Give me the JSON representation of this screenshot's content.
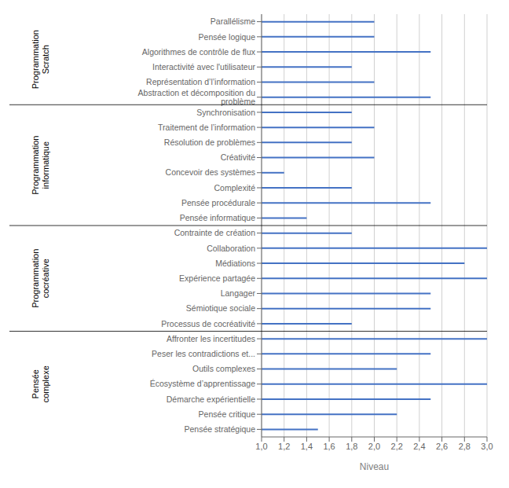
{
  "chart_data": {
    "type": "bar",
    "orientation": "horizontal",
    "categories": [
      "Parallélisme",
      "Pensée logique",
      "Algorithmes de contrôle de flux",
      "Interactivité avec l'utilisateur",
      "Représentation d’l’information",
      "Abstraction et décomposition du problème",
      "Synchronisation",
      "Traitement de l’information",
      "Résolution de problèmes",
      "Créativité",
      "Concevoir des systèmes",
      "Complexité",
      "Pensée procédurale",
      "Pensée informatique",
      "Contrainte de création",
      "Collaboration",
      "Médiations",
      "Expérience partagée",
      "Langager",
      "Sémiotique sociale",
      "Processus de cocréativité",
      "Affronter les incertitudes",
      "Peser les contradictions et...",
      "Outils complexes",
      "Écosystème d’apprentissage",
      "Démarche expérientielle",
      "Pensée critique",
      "Pensée stratégique"
    ],
    "values": [
      2.0,
      2.0,
      2.5,
      1.8,
      2.0,
      2.5,
      1.8,
      2.0,
      1.8,
      2.0,
      1.2,
      1.8,
      2.5,
      1.4,
      1.8,
      3.0,
      2.8,
      3.0,
      2.5,
      2.5,
      1.8,
      3.0,
      2.5,
      2.2,
      3.0,
      2.5,
      2.2,
      1.5
    ],
    "color": "#4472C4",
    "xlabel": "Niveau",
    "xlim": [
      1.0,
      3.0
    ],
    "xticks": [
      {
        "value": 1.0,
        "label": "1,0"
      },
      {
        "value": 1.2,
        "label": "1,2"
      },
      {
        "value": 1.4,
        "label": "1,4"
      },
      {
        "value": 1.6,
        "label": "1,6"
      },
      {
        "value": 1.8,
        "label": "1,8"
      },
      {
        "value": 2.0,
        "label": "2,0"
      },
      {
        "value": 2.2,
        "label": "2,2"
      },
      {
        "value": 2.4,
        "label": "2,4"
      },
      {
        "value": 2.6,
        "label": "2,6"
      },
      {
        "value": 2.8,
        "label": "2,8"
      },
      {
        "value": 3.0,
        "label": "3,0"
      }
    ],
    "grid": true,
    "group_labels": [
      "Programmation\nScratch",
      "Programmation\ninformatique",
      "Programmation\ncocréative",
      "Pensée\ncomplexe"
    ],
    "group_spans": [
      [
        0,
        5
      ],
      [
        6,
        13
      ],
      [
        14,
        20
      ],
      [
        21,
        27
      ]
    ]
  }
}
